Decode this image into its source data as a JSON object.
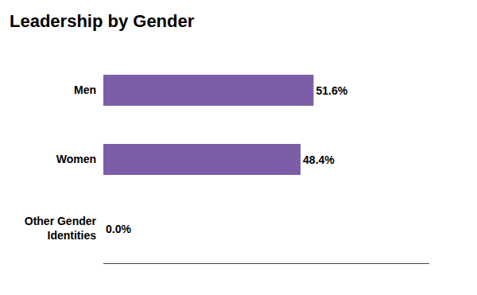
{
  "chart_data": {
    "type": "bar",
    "orientation": "horizontal",
    "title": "Leadership by Gender",
    "categories": [
      "Men",
      "Women",
      "Other Gender\nIdentities"
    ],
    "values": [
      51.6,
      48.4,
      0.0
    ],
    "value_labels": [
      "51.6%",
      "48.4%",
      "0.0%"
    ],
    "color": "#7B5EA7",
    "xlim": [
      0,
      80
    ],
    "data_labels": true,
    "tick_labels": "y",
    "grid": false
  }
}
